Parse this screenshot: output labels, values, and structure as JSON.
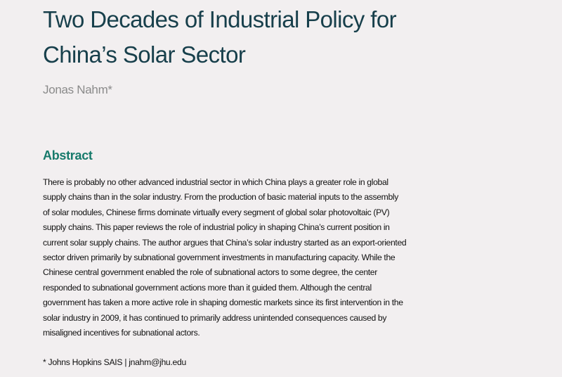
{
  "title_lines": [
    "Two Decades of Industrial Policy for",
    "China’s Solar Sector"
  ],
  "author": "Jonas Nahm*",
  "abstract": {
    "heading": "Abstract",
    "lines": [
      "There is probably no other advanced industrial sector in which China plays a greater role in global",
      "supply chains than in the solar industry. From the production of basic material inputs to the assembly",
      "of solar modules, Chinese firms dominate virtually every segment of global solar photovoltaic (PV)",
      "supply chains. This paper reviews the role of industrial policy in shaping China’s current position in",
      "current solar supply chains. The author argues that China’s solar industry started as an export-oriented",
      "sector driven primarily by subnational government investments in manufacturing capacity. While the",
      "Chinese central government enabled the role of subnational actors to some degree, the center",
      "responded to subnational government actions more than it guided them. Although the central",
      "government has taken a more active role in shaping domestic markets since its first intervention in the",
      "solar industry in 2009, it has continued to primarily address unintended consequences caused by",
      "misaligned incentives for subnational actors."
    ]
  },
  "footnote": {
    "text": "* Johns Hopkins SAIS | ",
    "email": "jnahm@jhu.edu"
  }
}
